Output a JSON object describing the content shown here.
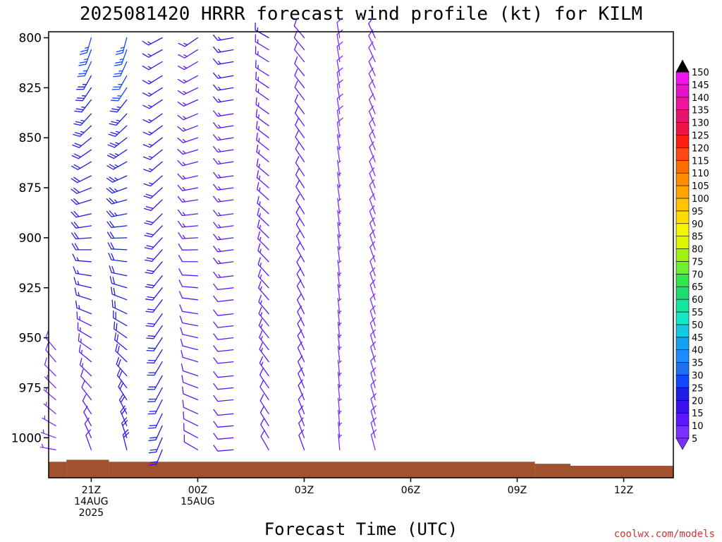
{
  "chart_data": {
    "type": "wind-barb-profile",
    "title": "2025081420 HRRR forecast wind profile (kt) for KILM",
    "xlabel": "Forecast Time (UTC)",
    "ylabel": "",
    "credit": "coolwx.com/models",
    "y_axis": {
      "inverted": true,
      "ylim": [
        797,
        1020
      ],
      "ticks": [
        800,
        825,
        850,
        875,
        900,
        925,
        950,
        975,
        1000
      ]
    },
    "x_axis": {
      "xlim": [
        -0.2,
        17.4
      ],
      "ticks": [
        {
          "hour": 1,
          "lines": [
            "21Z",
            "14AUG",
            "2025"
          ]
        },
        {
          "hour": 4,
          "lines": [
            "00Z",
            "15AUG"
          ]
        },
        {
          "hour": 7,
          "lines": [
            "03Z"
          ]
        },
        {
          "hour": 10,
          "lines": [
            "06Z"
          ]
        },
        {
          "hour": 13,
          "lines": [
            "09Z"
          ]
        },
        {
          "hour": 16,
          "lines": [
            "12Z"
          ]
        }
      ]
    },
    "surface_pressure": [
      {
        "hour_start": -0.2,
        "hour_end": 0.3,
        "p": 1012
      },
      {
        "hour_start": 0.3,
        "hour_end": 1.5,
        "p": 1011
      },
      {
        "hour_start": 1.5,
        "hour_end": 13.5,
        "p": 1012
      },
      {
        "hour_start": 13.5,
        "hour_end": 14.5,
        "p": 1013
      },
      {
        "hour_start": 14.5,
        "hour_end": 17.4,
        "p": 1014
      }
    ],
    "colorbar": {
      "levels": [
        5,
        10,
        15,
        20,
        25,
        30,
        35,
        40,
        45,
        50,
        55,
        60,
        65,
        70,
        75,
        80,
        85,
        90,
        95,
        100,
        105,
        110,
        115,
        120,
        125,
        130,
        135,
        140,
        145,
        150
      ],
      "colors": [
        "#7a30ff",
        "#5a18ff",
        "#3a10f0",
        "#1e1ee6",
        "#1446ff",
        "#1e6ef0",
        "#1e8cff",
        "#14a0f0",
        "#14c8e6",
        "#14e6c8",
        "#14e6a0",
        "#1edc6e",
        "#32e650",
        "#6ef032",
        "#a0f014",
        "#dcf500",
        "#f5f500",
        "#ffdc00",
        "#ffc300",
        "#ffa500",
        "#ff8c00",
        "#ff6e00",
        "#ff4614",
        "#ff1e14",
        "#f01446",
        "#e6146e",
        "#f014a0",
        "#e614c8",
        "#f014f0",
        "#000000"
      ]
    },
    "pressure_levels": [
      800,
      806,
      812,
      819,
      825,
      831,
      838,
      844,
      850,
      856,
      862,
      869,
      875,
      881,
      888,
      894,
      900,
      906,
      912,
      919,
      925,
      931,
      938,
      944,
      950,
      956,
      962,
      969,
      975,
      981,
      988,
      994,
      1000,
      1006
    ],
    "profiles": [
      {
        "hour": 0,
        "barbs": [
          {
            "p": 956,
            "dir": 320,
            "spd": 8
          },
          {
            "p": 962,
            "dir": 320,
            "spd": 8
          },
          {
            "p": 969,
            "dir": 315,
            "spd": 8
          },
          {
            "p": 975,
            "dir": 315,
            "spd": 7
          },
          {
            "p": 981,
            "dir": 310,
            "spd": 7
          },
          {
            "p": 988,
            "dir": 310,
            "spd": 7
          },
          {
            "p": 994,
            "dir": 300,
            "spd": 6
          },
          {
            "p": 1000,
            "dir": 290,
            "spd": 6
          },
          {
            "p": 1006,
            "dir": 280,
            "spd": 6
          }
        ]
      },
      {
        "hour": 1,
        "top_dir": 196,
        "bot_dir": 340,
        "top_spd": 26,
        "bot_spd": 10
      },
      {
        "hour": 2,
        "top_dir": 195,
        "bot_dir": 346,
        "top_spd": 26,
        "bot_spd": 18
      },
      {
        "hour": 3,
        "top_dir": 242,
        "bot_dir": 202,
        "top_spd": 15,
        "bot_spd": 22
      },
      {
        "hour": 4,
        "top_dir": 236,
        "bot_dir": 300,
        "top_spd": 15,
        "bot_spd": 10
      },
      {
        "hour": 5,
        "top_dir": 260,
        "bot_dir": 265,
        "top_spd": 16,
        "bot_spd": 10
      },
      {
        "hour": 6,
        "top_dir": 300,
        "bot_dir": 330,
        "top_spd": 15,
        "bot_spd": 12
      },
      {
        "hour": 7,
        "top_dir": 320,
        "bot_dir": 340,
        "top_spd": 12,
        "bot_spd": 10
      },
      {
        "hour": 8,
        "top_dir": 350,
        "bot_dir": 355,
        "top_spd": 8,
        "bot_spd": 6
      },
      {
        "hour": 9,
        "top_dir": 335,
        "bot_dir": 345,
        "top_spd": 10,
        "bot_spd": 8
      }
    ]
  }
}
